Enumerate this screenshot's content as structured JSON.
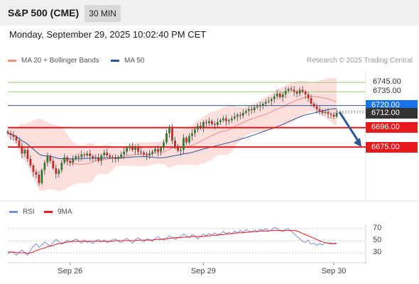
{
  "header": {
    "title": "S&P 500 (CME)",
    "timeframe": "30 MIN",
    "datetime": "Monday, September 29, 2025 10:02:40 PM CET"
  },
  "legend": {
    "items": [
      {
        "label": "MA 20 + Bollinger Bands",
        "color": "#f28b82"
      },
      {
        "label": "MA 50",
        "color": "#2b5797"
      }
    ],
    "credit": "Research © 2025 Trading Central"
  },
  "chart_data": {
    "type": "candlestick",
    "price_range": [
      6622,
      6762
    ],
    "x_ticks": [
      {
        "label": "Sep 26",
        "index": 22
      },
      {
        "label": "Sep 29",
        "index": 69
      },
      {
        "label": "Sep 30",
        "index": 115
      }
    ],
    "levels": [
      {
        "value": "6745.00",
        "kind": "resistance",
        "color": "#9cc97a",
        "boxed": false
      },
      {
        "value": "6735.00",
        "kind": "resistance",
        "color": "#9cc97a",
        "boxed": false
      },
      {
        "value": "6720.00",
        "kind": "pivot",
        "color": "#1a73e8",
        "boxed": true
      },
      {
        "value": "6712.00",
        "kind": "last",
        "color": "#333333",
        "boxed": true
      },
      {
        "value": "6696.00",
        "kind": "support",
        "color": "#e8191c",
        "boxed": true
      },
      {
        "value": "6675.00",
        "kind": "support",
        "color": "#e8191c",
        "boxed": true
      }
    ],
    "forecast_arrow": {
      "from": 6713,
      "to": 6675,
      "direction": "down"
    },
    "closes": [
      6690,
      6688,
      6686,
      6682,
      6676,
      6668,
      6672,
      6662,
      6655,
      6648,
      6645,
      6636,
      6650,
      6658,
      6665,
      6660,
      6652,
      6646,
      6650,
      6658,
      6664,
      6660,
      6658,
      6662,
      6665,
      6664,
      6667,
      6666,
      6668,
      6665,
      6663,
      6664,
      6660,
      6666,
      6669,
      6666,
      6664,
      6663,
      6662,
      6664,
      6667,
      6670,
      6674,
      6676,
      6672,
      6675,
      6670,
      6669,
      6667,
      6666,
      6668,
      6670,
      6673,
      6670,
      6674,
      6680,
      6690,
      6697,
      6682,
      6676,
      6671,
      6672,
      6685,
      6680,
      6687,
      6690,
      6694,
      6698,
      6696,
      6702,
      6701,
      6703,
      6700,
      6699,
      6702,
      6704,
      6706,
      6703,
      6704,
      6706,
      6708,
      6710,
      6709,
      6712,
      6714,
      6716,
      6715,
      6718,
      6719,
      6720,
      6722,
      6724,
      6725,
      6727,
      6730,
      6733,
      6729,
      6732,
      6736,
      6738,
      6737,
      6735,
      6733,
      6737,
      6735,
      6732,
      6728,
      6722,
      6719,
      6716,
      6714,
      6712,
      6713,
      6711,
      6710,
      6708,
      6712
    ],
    "rsi": {
      "name": "RSI",
      "color": "#7b8fd6",
      "levels": [
        70,
        50,
        30
      ],
      "values": [
        28,
        32,
        30,
        26,
        31,
        35,
        30,
        26,
        34,
        41,
        45,
        39,
        43,
        48,
        44,
        41,
        47,
        52,
        49,
        44,
        47,
        51,
        48,
        50,
        53,
        49,
        46,
        51,
        47,
        49,
        45,
        50,
        52,
        48,
        51,
        47,
        49,
        52,
        53,
        49,
        47,
        51,
        54,
        50,
        46,
        52,
        55,
        51,
        48,
        53,
        52,
        49,
        54,
        57,
        53,
        51,
        54,
        58,
        56,
        52,
        55,
        57,
        61,
        58,
        55,
        60,
        58,
        53,
        57,
        61,
        58,
        62,
        59,
        63,
        60,
        61,
        65,
        62,
        64,
        61,
        66,
        63,
        67,
        64,
        68,
        66,
        64,
        68,
        65,
        69,
        67,
        70,
        66,
        68,
        72,
        70,
        67,
        65,
        69,
        70,
        66,
        61,
        57,
        53,
        49,
        47,
        51,
        44,
        46,
        42,
        45,
        43,
        47,
        46,
        44,
        45,
        47
      ]
    },
    "rsi_ma": {
      "name": "9MA",
      "color": "#e8191c",
      "values": [
        31,
        31,
        31,
        30,
        30,
        30,
        30,
        29,
        30,
        31,
        34,
        35,
        37,
        38,
        40,
        41,
        42,
        44,
        45,
        46,
        47,
        48,
        48,
        49,
        49,
        49,
        49,
        49,
        49,
        49,
        49,
        49,
        49,
        49,
        49,
        49,
        49,
        49,
        50,
        50,
        50,
        50,
        50,
        50,
        50,
        50,
        51,
        51,
        51,
        51,
        51,
        51,
        52,
        52,
        52,
        53,
        53,
        54,
        54,
        55,
        55,
        55,
        56,
        56,
        56,
        57,
        57,
        57,
        57,
        57,
        58,
        58,
        59,
        59,
        59,
        60,
        60,
        61,
        61,
        62,
        62,
        63,
        63,
        63,
        64,
        64,
        65,
        65,
        65,
        66,
        66,
        66,
        66,
        67,
        67,
        67,
        67,
        67,
        67,
        67,
        67,
        67,
        66,
        64,
        62,
        60,
        58,
        56,
        54,
        52,
        50,
        48,
        47,
        46,
        46,
        45,
        45
      ]
    }
  },
  "rsi_legend": [
    {
      "label": "RSI",
      "color": "#7b8fd6"
    },
    {
      "label": "9MA",
      "color": "#e8191c"
    }
  ]
}
